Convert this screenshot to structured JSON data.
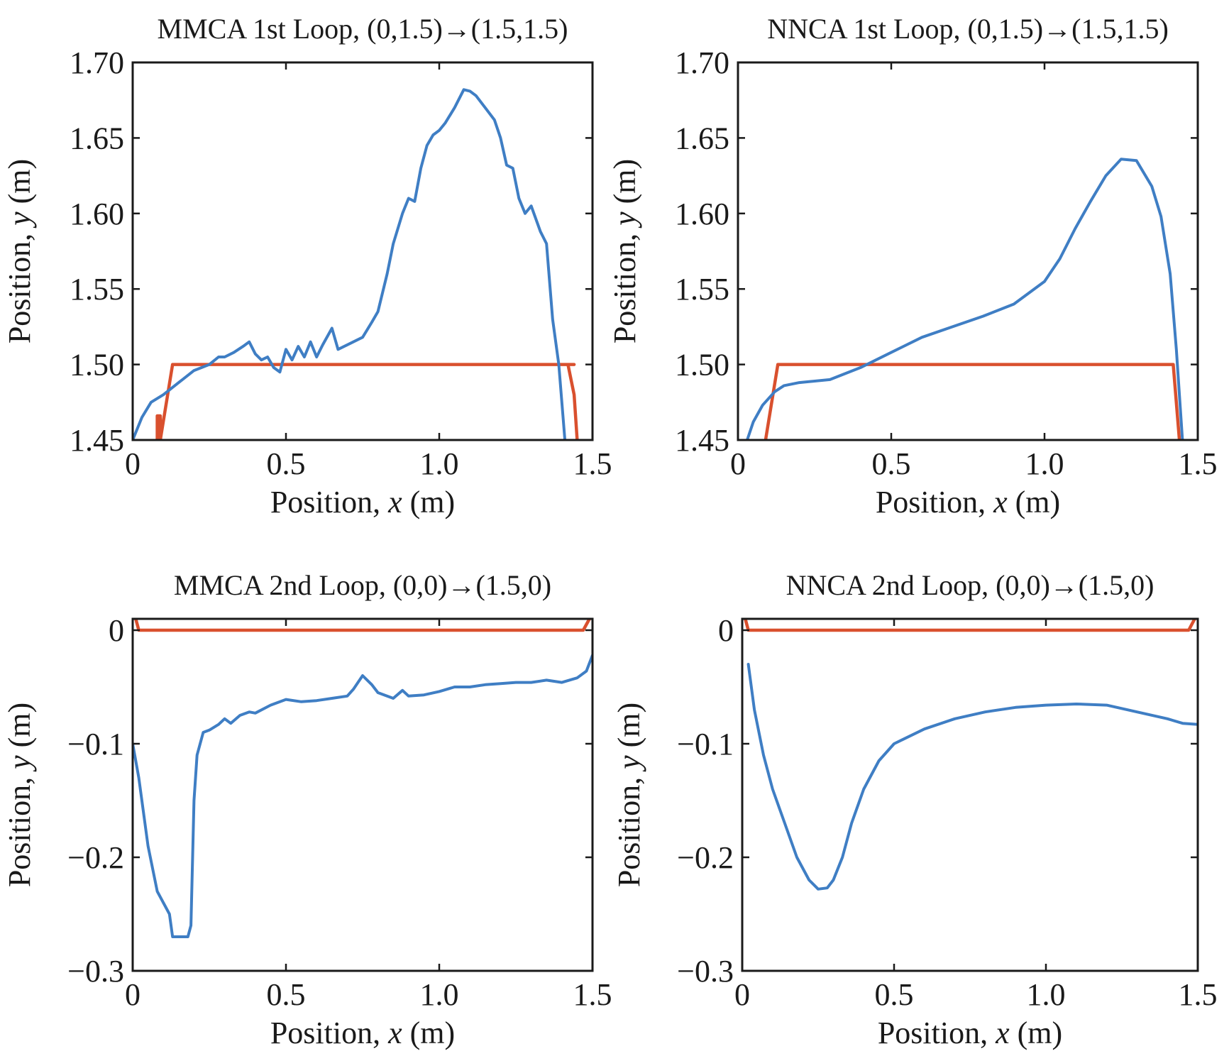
{
  "colors": {
    "reference": "#d9502e",
    "actual": "#3f7ec4",
    "axes": "#1a1a1a"
  },
  "chart_data": [
    {
      "type": "line",
      "title": "MMCA 1st Loop, (0,1.5)→(1.5,1.5)",
      "xlabel_prefix": "Position, ",
      "xlabel_var": "x",
      "xlabel_unit": " (m)",
      "ylabel_prefix": "Position, ",
      "ylabel_var": "y",
      "ylabel_unit": " (m)",
      "xlim": [
        0,
        1.5
      ],
      "ylim": [
        1.45,
        1.7
      ],
      "xticks": [
        0,
        0.5,
        1.0,
        1.5
      ],
      "xtick_labels": [
        "0",
        "0.5",
        "1.0",
        "1.5"
      ],
      "yticks": [
        1.45,
        1.5,
        1.55,
        1.6,
        1.65,
        1.7
      ],
      "ytick_labels": [
        "1.45",
        "1.50",
        "1.55",
        "1.60",
        "1.65",
        "1.70"
      ],
      "grid": false,
      "series": [
        {
          "role": "reference",
          "color": "#d9502e",
          "x": [
            0.08,
            0.08,
            0.09,
            0.09,
            0.13,
            1.44,
            1.4,
            1.42,
            1.44,
            1.45
          ],
          "y": [
            1.45,
            1.466,
            1.466,
            1.45,
            1.5,
            1.5,
            1.5,
            1.5,
            1.48,
            1.45
          ]
        },
        {
          "role": "actual",
          "color": "#3f7ec4",
          "x": [
            0.0,
            0.03,
            0.06,
            0.1,
            0.15,
            0.2,
            0.25,
            0.28,
            0.3,
            0.33,
            0.36,
            0.38,
            0.4,
            0.42,
            0.44,
            0.46,
            0.48,
            0.5,
            0.52,
            0.54,
            0.56,
            0.58,
            0.6,
            0.62,
            0.65,
            0.67,
            0.7,
            0.75,
            0.78,
            0.8,
            0.83,
            0.85,
            0.88,
            0.9,
            0.92,
            0.94,
            0.96,
            0.98,
            1.0,
            1.02,
            1.05,
            1.08,
            1.1,
            1.12,
            1.15,
            1.18,
            1.2,
            1.22,
            1.24,
            1.26,
            1.28,
            1.3,
            1.33,
            1.35,
            1.37,
            1.39,
            1.41
          ],
          "y": [
            1.45,
            1.465,
            1.475,
            1.48,
            1.488,
            1.496,
            1.5,
            1.505,
            1.505,
            1.508,
            1.512,
            1.515,
            1.507,
            1.503,
            1.505,
            1.498,
            1.495,
            1.51,
            1.503,
            1.512,
            1.505,
            1.515,
            1.505,
            1.513,
            1.524,
            1.51,
            1.513,
            1.518,
            1.528,
            1.535,
            1.56,
            1.58,
            1.6,
            1.61,
            1.608,
            1.63,
            1.645,
            1.652,
            1.655,
            1.66,
            1.67,
            1.682,
            1.681,
            1.678,
            1.67,
            1.662,
            1.65,
            1.632,
            1.63,
            1.61,
            1.6,
            1.605,
            1.588,
            1.58,
            1.53,
            1.5,
            1.45
          ]
        }
      ]
    },
    {
      "type": "line",
      "title": "NNCA 1st Loop, (0,1.5)→(1.5,1.5)",
      "xlabel_prefix": "Position, ",
      "xlabel_var": "x",
      "xlabel_unit": " (m)",
      "ylabel_prefix": "Position, ",
      "ylabel_var": "y",
      "ylabel_unit": " (m)",
      "xlim": [
        0,
        1.5
      ],
      "ylim": [
        1.45,
        1.7
      ],
      "xticks": [
        0,
        0.5,
        1.0,
        1.5
      ],
      "xtick_labels": [
        "0",
        "0.5",
        "1.0",
        "1.5"
      ],
      "yticks": [
        1.45,
        1.5,
        1.55,
        1.6,
        1.65,
        1.7
      ],
      "ytick_labels": [
        "1.45",
        "1.50",
        "1.55",
        "1.60",
        "1.65",
        "1.70"
      ],
      "grid": false,
      "series": [
        {
          "role": "reference",
          "color": "#d9502e",
          "x": [
            0.09,
            0.13,
            1.42,
            1.44
          ],
          "y": [
            1.45,
            1.5,
            1.5,
            1.45
          ]
        },
        {
          "role": "actual",
          "color": "#3f7ec4",
          "x": [
            0.03,
            0.05,
            0.08,
            0.12,
            0.15,
            0.2,
            0.3,
            0.4,
            0.5,
            0.6,
            0.7,
            0.8,
            0.9,
            1.0,
            1.05,
            1.1,
            1.15,
            1.2,
            1.25,
            1.3,
            1.35,
            1.38,
            1.41,
            1.43,
            1.45
          ],
          "y": [
            1.45,
            1.462,
            1.473,
            1.482,
            1.486,
            1.488,
            1.49,
            1.498,
            1.508,
            1.518,
            1.525,
            1.532,
            1.54,
            1.555,
            1.57,
            1.59,
            1.608,
            1.625,
            1.636,
            1.635,
            1.618,
            1.598,
            1.56,
            1.51,
            1.45
          ]
        }
      ]
    },
    {
      "type": "line",
      "title": "MMCA 2nd Loop, (0,0)→(1.5,0)",
      "xlabel_prefix": "Position, ",
      "xlabel_var": "x",
      "xlabel_unit": " (m)",
      "ylabel_prefix": "Position, ",
      "ylabel_var": "y",
      "ylabel_unit": " (m)",
      "xlim": [
        0,
        1.5
      ],
      "ylim": [
        -0.3,
        0.01
      ],
      "xticks": [
        0,
        0.5,
        1.0,
        1.5
      ],
      "xtick_labels": [
        "0",
        "0.5",
        "1.0",
        "1.5"
      ],
      "yticks": [
        -0.3,
        -0.2,
        -0.1,
        0
      ],
      "ytick_labels": [
        "−0.3",
        "−0.2",
        "−0.1",
        "0"
      ],
      "grid": false,
      "series": [
        {
          "role": "reference",
          "color": "#d9502e",
          "x": [
            0.01,
            0.02,
            1.47,
            1.49
          ],
          "y": [
            0.01,
            0.0,
            0.0,
            0.01
          ]
        },
        {
          "role": "actual",
          "color": "#3f7ec4",
          "x": [
            0.0,
            0.02,
            0.05,
            0.08,
            0.1,
            0.12,
            0.13,
            0.14,
            0.16,
            0.18,
            0.19,
            0.2,
            0.21,
            0.23,
            0.25,
            0.28,
            0.3,
            0.32,
            0.35,
            0.38,
            0.4,
            0.45,
            0.5,
            0.55,
            0.6,
            0.65,
            0.7,
            0.72,
            0.75,
            0.78,
            0.8,
            0.85,
            0.88,
            0.9,
            0.95,
            1.0,
            1.05,
            1.1,
            1.15,
            1.2,
            1.25,
            1.3,
            1.35,
            1.4,
            1.45,
            1.48,
            1.5
          ],
          "y": [
            -0.1,
            -0.13,
            -0.19,
            -0.23,
            -0.24,
            -0.25,
            -0.27,
            -0.27,
            -0.27,
            -0.27,
            -0.26,
            -0.15,
            -0.11,
            -0.09,
            -0.088,
            -0.083,
            -0.078,
            -0.082,
            -0.075,
            -0.072,
            -0.073,
            -0.066,
            -0.061,
            -0.063,
            -0.062,
            -0.06,
            -0.058,
            -0.052,
            -0.04,
            -0.048,
            -0.055,
            -0.06,
            -0.053,
            -0.058,
            -0.057,
            -0.054,
            -0.05,
            -0.05,
            -0.048,
            -0.047,
            -0.046,
            -0.046,
            -0.044,
            -0.046,
            -0.042,
            -0.036,
            -0.022
          ]
        }
      ]
    },
    {
      "type": "line",
      "title": "NNCA 2nd Loop, (0,0)→(1.5,0)",
      "xlabel_prefix": "Position, ",
      "xlabel_var": "x",
      "xlabel_unit": " (m)",
      "ylabel_prefix": "Position, ",
      "ylabel_var": "y",
      "ylabel_unit": " (m)",
      "xlim": [
        0,
        1.5
      ],
      "ylim": [
        -0.3,
        0.01
      ],
      "xticks": [
        0,
        0.5,
        1.0,
        1.5
      ],
      "xtick_labels": [
        "0",
        "0.5",
        "1.0",
        "1.5"
      ],
      "yticks": [
        -0.3,
        -0.2,
        -0.1,
        0
      ],
      "ytick_labels": [
        "−0.3",
        "−0.2",
        "−0.1",
        "0"
      ],
      "grid": false,
      "series": [
        {
          "role": "reference",
          "color": "#d9502e",
          "x": [
            0.01,
            0.02,
            1.47,
            1.49
          ],
          "y": [
            0.01,
            0.0,
            0.0,
            0.01
          ]
        },
        {
          "role": "actual",
          "color": "#3f7ec4",
          "x": [
            0.02,
            0.04,
            0.07,
            0.1,
            0.14,
            0.18,
            0.22,
            0.25,
            0.28,
            0.3,
            0.33,
            0.36,
            0.4,
            0.45,
            0.5,
            0.6,
            0.7,
            0.8,
            0.9,
            1.0,
            1.1,
            1.2,
            1.3,
            1.4,
            1.45,
            1.5
          ],
          "y": [
            -0.03,
            -0.07,
            -0.11,
            -0.14,
            -0.17,
            -0.2,
            -0.22,
            -0.228,
            -0.227,
            -0.22,
            -0.2,
            -0.17,
            -0.14,
            -0.115,
            -0.1,
            -0.087,
            -0.078,
            -0.072,
            -0.068,
            -0.066,
            -0.065,
            -0.066,
            -0.072,
            -0.078,
            -0.082,
            -0.083
          ]
        }
      ]
    }
  ]
}
